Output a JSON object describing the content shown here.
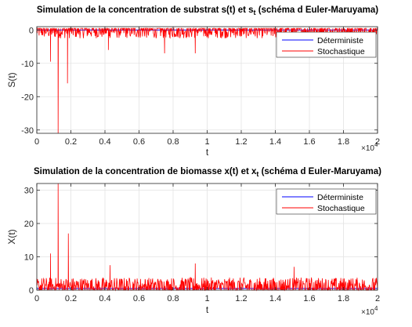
{
  "chart_data": [
    {
      "type": "line",
      "title": "Simulation de la concentration de substrat s(t) et s",
      "title_subscript": "t",
      "title_suffix": " (schéma d Euler-Maruyama)",
      "xlabel": "t",
      "ylabel": "S(t)",
      "xlim": [
        0,
        20000
      ],
      "ylim": [
        -31,
        1
      ],
      "x_ticks": [
        0,
        2000,
        4000,
        6000,
        8000,
        10000,
        12000,
        14000,
        16000,
        18000,
        20000
      ],
      "x_tick_labels": [
        "0",
        "0.2",
        "0.4",
        "0.6",
        "0.8",
        "1",
        "1.2",
        "1.4",
        "1.6",
        "1.8",
        "2"
      ],
      "x_multiplier": "×10",
      "x_multiplier_exp": "4",
      "y_ticks": [
        0,
        -10,
        -20,
        -30
      ],
      "y_tick_labels": [
        "0",
        "-10",
        "-20",
        "-30"
      ],
      "grid": true,
      "legend_position": "top-right",
      "series": [
        {
          "name": "Déterministe",
          "color": "#0000ff",
          "style": "flat",
          "value": 0
        },
        {
          "name": "Stochastique",
          "color": "#ff0000",
          "style": "noise",
          "baseline": 0,
          "noise_amp": 2.5,
          "noise_min": -3.5,
          "noise_max": 0.5,
          "spikes": [
            {
              "x": 800,
              "y": -9.5
            },
            {
              "x": 1250,
              "y": -31
            },
            {
              "x": 1800,
              "y": -16
            },
            {
              "x": 4200,
              "y": -6
            },
            {
              "x": 7500,
              "y": -7
            },
            {
              "x": 9300,
              "y": -7
            }
          ]
        }
      ]
    },
    {
      "type": "line",
      "title": "Simulation de la concentration de biomasse x(t) et x",
      "title_subscript": "t",
      "title_suffix": " (schéma d Euler-Maruyama)",
      "xlabel": "t",
      "ylabel": "X(t)",
      "xlim": [
        0,
        20000
      ],
      "ylim": [
        0,
        32
      ],
      "x_ticks": [
        0,
        2000,
        4000,
        6000,
        8000,
        10000,
        12000,
        14000,
        16000,
        18000,
        20000
      ],
      "x_tick_labels": [
        "0",
        "0.2",
        "0.4",
        "0.6",
        "0.8",
        "1",
        "1.2",
        "1.4",
        "1.6",
        "1.8",
        "2"
      ],
      "x_multiplier": "×10",
      "x_multiplier_exp": "4",
      "y_ticks": [
        0,
        10,
        20,
        30
      ],
      "y_tick_labels": [
        "0",
        "10",
        "20",
        "30"
      ],
      "grid": true,
      "legend_position": "top-right",
      "series": [
        {
          "name": "Déterministe",
          "color": "#0000ff",
          "style": "flat",
          "value": 0.5
        },
        {
          "name": "Stochastique",
          "color": "#ff0000",
          "style": "noise",
          "baseline": 1.0,
          "noise_amp": 2.8,
          "noise_min": 0,
          "noise_max": 4.0,
          "spikes": [
            {
              "x": 800,
              "y": 11
            },
            {
              "x": 1250,
              "y": 32
            },
            {
              "x": 1850,
              "y": 17
            },
            {
              "x": 4300,
              "y": 7.5
            },
            {
              "x": 9300,
              "y": 8
            },
            {
              "x": 15100,
              "y": 7
            }
          ]
        }
      ]
    }
  ]
}
